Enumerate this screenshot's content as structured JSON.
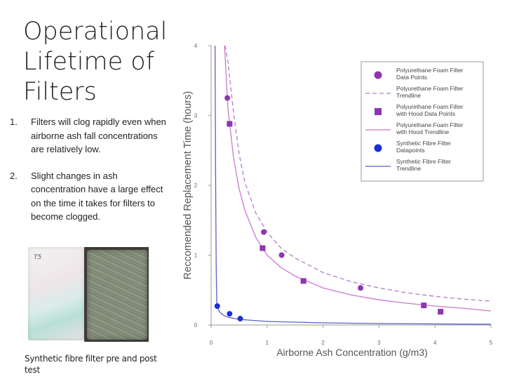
{
  "slide": {
    "title": "Operational Lifetime of Filters",
    "points": [
      {
        "num": "1.",
        "text": "Filters will clog rapidly even when airborne ash fall concentrations are relatively low."
      },
      {
        "num": "2.",
        "text": "Slight changes in ash concentration have a large effect on the time it takes for filters to become clogged."
      }
    ],
    "photo_tag": "T5",
    "caption": "Synthetic fibre filter pre and post test"
  },
  "chart_data": {
    "type": "scatter",
    "title": "",
    "xlabel": "Airborne Ash Concentration (g/m3)",
    "ylabel": "Reccomended Replacement Time (hours)",
    "xlim": [
      0,
      5
    ],
    "ylim": [
      0,
      4
    ],
    "xticks": [
      "0",
      "1",
      "2",
      "3",
      "4",
      "5"
    ],
    "yticks": [
      "0",
      "1",
      "2",
      "3",
      "4"
    ],
    "legend_position": "top-right",
    "colors": {
      "foam": "#8e35b0",
      "hood": "#8e35b0",
      "hood_line": "#cc77cc",
      "foam_line": "#b27ac8",
      "synthetic": "#1d2fd8",
      "synthetic_line": "#5b5fc8"
    },
    "series": [
      {
        "name": "Polyurethane Foam Filter Data Points",
        "kind": "points",
        "marker": "circle",
        "x": [
          0.29,
          0.94,
          1.26,
          2.67
        ],
        "y": [
          3.25,
          1.33,
          1.0,
          0.53
        ]
      },
      {
        "name": "Polyurethane Foam Filter Trendline",
        "kind": "line",
        "dash": "dashed",
        "x": [
          0.25,
          0.3,
          0.4,
          0.5,
          0.6,
          0.8,
          1.0,
          1.25,
          1.5,
          2.0,
          2.5,
          3.0,
          3.5,
          4.0,
          4.5,
          5.0
        ],
        "y": [
          4.0,
          3.77,
          3.05,
          2.45,
          2.05,
          1.6,
          1.33,
          1.1,
          0.96,
          0.75,
          0.62,
          0.53,
          0.46,
          0.41,
          0.37,
          0.34
        ]
      },
      {
        "name": "Polyurethane Foam Filter with Hood Data Points",
        "kind": "points",
        "marker": "square",
        "x": [
          0.33,
          0.92,
          1.65,
          3.8,
          4.1
        ],
        "y": [
          2.88,
          1.1,
          0.63,
          0.28,
          0.19
        ]
      },
      {
        "name": "Polyurethane Foam Filter with Hood Trendline",
        "kind": "line",
        "dash": "solid",
        "x": [
          0.24,
          0.3,
          0.4,
          0.5,
          0.6,
          0.8,
          1.0,
          1.25,
          1.5,
          2.0,
          2.5,
          3.0,
          3.5,
          4.0,
          4.5,
          5.0
        ],
        "y": [
          4.0,
          3.1,
          2.4,
          1.95,
          1.65,
          1.25,
          1.0,
          0.82,
          0.7,
          0.53,
          0.43,
          0.36,
          0.31,
          0.27,
          0.24,
          0.2
        ]
      },
      {
        "name": "Synthetic Fibre Filter Datapoints",
        "kind": "points",
        "marker": "circle",
        "x": [
          0.11,
          0.33,
          0.52
        ],
        "y": [
          0.27,
          0.16,
          0.09
        ]
      },
      {
        "name": "Synthetic Fibre Filter Trendline",
        "kind": "line",
        "dash": "solid",
        "x": [
          0.07,
          0.08,
          0.09,
          0.1,
          0.12,
          0.15,
          0.2,
          0.3,
          0.5,
          1.0,
          2.0,
          3.0,
          4.0,
          5.0
        ],
        "y": [
          4.0,
          2.2,
          0.9,
          0.32,
          0.24,
          0.19,
          0.15,
          0.11,
          0.08,
          0.05,
          0.03,
          0.02,
          0.015,
          0.01
        ]
      }
    ]
  }
}
